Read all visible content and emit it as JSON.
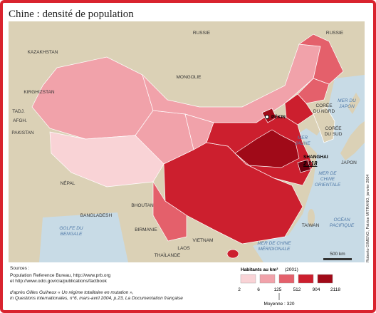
{
  "title": "Chine : densité de population",
  "map": {
    "labels": [
      {
        "lines": [
          "RUSSIE"
        ],
        "kind": "land"
      },
      {
        "lines": [
          "RUSSIE"
        ],
        "kind": "land"
      },
      {
        "lines": [
          "KAZAKHSTAN"
        ],
        "kind": "land"
      },
      {
        "lines": [
          "MONGOLIE"
        ],
        "kind": "land"
      },
      {
        "lines": [
          "KIRGHIZSTAN"
        ],
        "kind": "land"
      },
      {
        "lines": [
          "TADJ."
        ],
        "kind": "land"
      },
      {
        "lines": [
          "AFGH."
        ],
        "kind": "land"
      },
      {
        "lines": [
          "PAKISTAN"
        ],
        "kind": "land"
      },
      {
        "lines": [
          "NÉPAL"
        ],
        "kind": "land"
      },
      {
        "lines": [
          "BHOUTAN"
        ],
        "kind": "land"
      },
      {
        "lines": [
          "BANGLADESH"
        ],
        "kind": "land"
      },
      {
        "lines": [
          "BIRMANIE"
        ],
        "kind": "land"
      },
      {
        "lines": [
          "GOLFE DU",
          "BENGALE"
        ],
        "kind": "sea"
      },
      {
        "lines": [
          "THAÏLANDE"
        ],
        "kind": "land"
      },
      {
        "lines": [
          "LAOS"
        ],
        "kind": "land"
      },
      {
        "lines": [
          "VIETNAM"
        ],
        "kind": "land"
      },
      {
        "lines": [
          "CORÉE",
          "DU NORD"
        ],
        "kind": "land"
      },
      {
        "lines": [
          "CORÉE",
          "DU SUD"
        ],
        "kind": "land"
      },
      {
        "lines": [
          "JAPON"
        ],
        "kind": "land"
      },
      {
        "lines": [
          "TAIWAN"
        ],
        "kind": "land"
      },
      {
        "lines": [
          "MER DU",
          "JAPON"
        ],
        "kind": "sea"
      },
      {
        "lines": [
          "MER",
          "JAUNE"
        ],
        "kind": "sea"
      },
      {
        "lines": [
          "MER DE",
          "CHINE",
          "ORIENTALE"
        ],
        "kind": "sea"
      },
      {
        "lines": [
          "OCÉAN",
          "PACIFIQUE"
        ],
        "kind": "sea"
      },
      {
        "lines": [
          "MER DE CHINE",
          "MÉRIDIONALE"
        ],
        "kind": "sea"
      }
    ],
    "cities": [
      {
        "name": "PÉKIN"
      },
      {
        "name": "SHANGHAI",
        "density": "2 118"
      }
    ],
    "scale": "500 km",
    "credit": "Roberto GIMENO, Patrice MITRANO, janvier 2004"
  },
  "legend": {
    "title": "Habitants au km²",
    "year": "(2001)",
    "breaks": [
      2,
      6,
      125,
      512,
      904,
      2118
    ],
    "colors": [
      "#f9d3d6",
      "#f1a2aa",
      "#e4606b",
      "#cc1f2e",
      "#a00a18"
    ],
    "average": "Moyenne : 320"
  },
  "sources": {
    "heading": "Sources :",
    "lines": [
      "Population Reference Bureau, http://www.prb.org",
      "et http://www.odci.gov/cia/publications/factbook"
    ],
    "note": [
      "d'après Gilles Guiheux « Un régime totalitaire en mutation »,",
      "in Questions internationales, n°6, mars-avril 2004, p.23, La Documentation française"
    ]
  }
}
